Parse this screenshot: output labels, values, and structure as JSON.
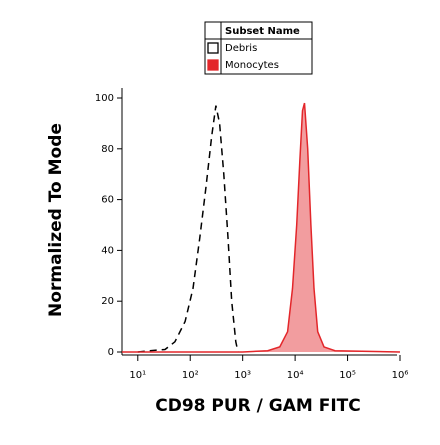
{
  "chart_data": {
    "type": "line",
    "xlabel": "CD98 PUR / GAM FITC",
    "ylabel": "Normalized To Mode",
    "legend_title": "Subset Name",
    "xscale": "log",
    "xlim": [
      5,
      1000000
    ],
    "ylim": [
      0,
      100
    ],
    "xticks": [
      {
        "value": 10,
        "label": "10¹"
      },
      {
        "value": 100,
        "label": "10²"
      },
      {
        "value": 1000,
        "label": "10³"
      },
      {
        "value": 10000,
        "label": "10⁴"
      },
      {
        "value": 100000,
        "label": "10⁵"
      },
      {
        "value": 1000000,
        "label": "10⁶"
      }
    ],
    "yticks": [
      0,
      20,
      40,
      60,
      80,
      100
    ],
    "series": [
      {
        "name": "Debris",
        "color": "#000000",
        "dashed": true,
        "filled": false,
        "x": [
          10,
          17,
          33,
          51,
          80,
          113,
          152,
          200,
          257,
          309,
          363,
          436,
          525,
          617,
          741,
          813
        ],
        "values": [
          0,
          0.5,
          1,
          4,
          12,
          25,
          45,
          65,
          85,
          97,
          90,
          70,
          45,
          20,
          4,
          0
        ]
      },
      {
        "name": "Monocytes",
        "color": "#e3262a",
        "dashed": false,
        "filled": true,
        "x": [
          5,
          1000,
          3000,
          5100,
          7200,
          8900,
          10700,
          12300,
          13800,
          15100,
          17400,
          20000,
          22900,
          27000,
          35500,
          57500,
          1000000
        ],
        "values": [
          0,
          0,
          0.5,
          2,
          8,
          25,
          50,
          75,
          95,
          98,
          80,
          50,
          25,
          8,
          2,
          0.5,
          0
        ]
      }
    ]
  }
}
